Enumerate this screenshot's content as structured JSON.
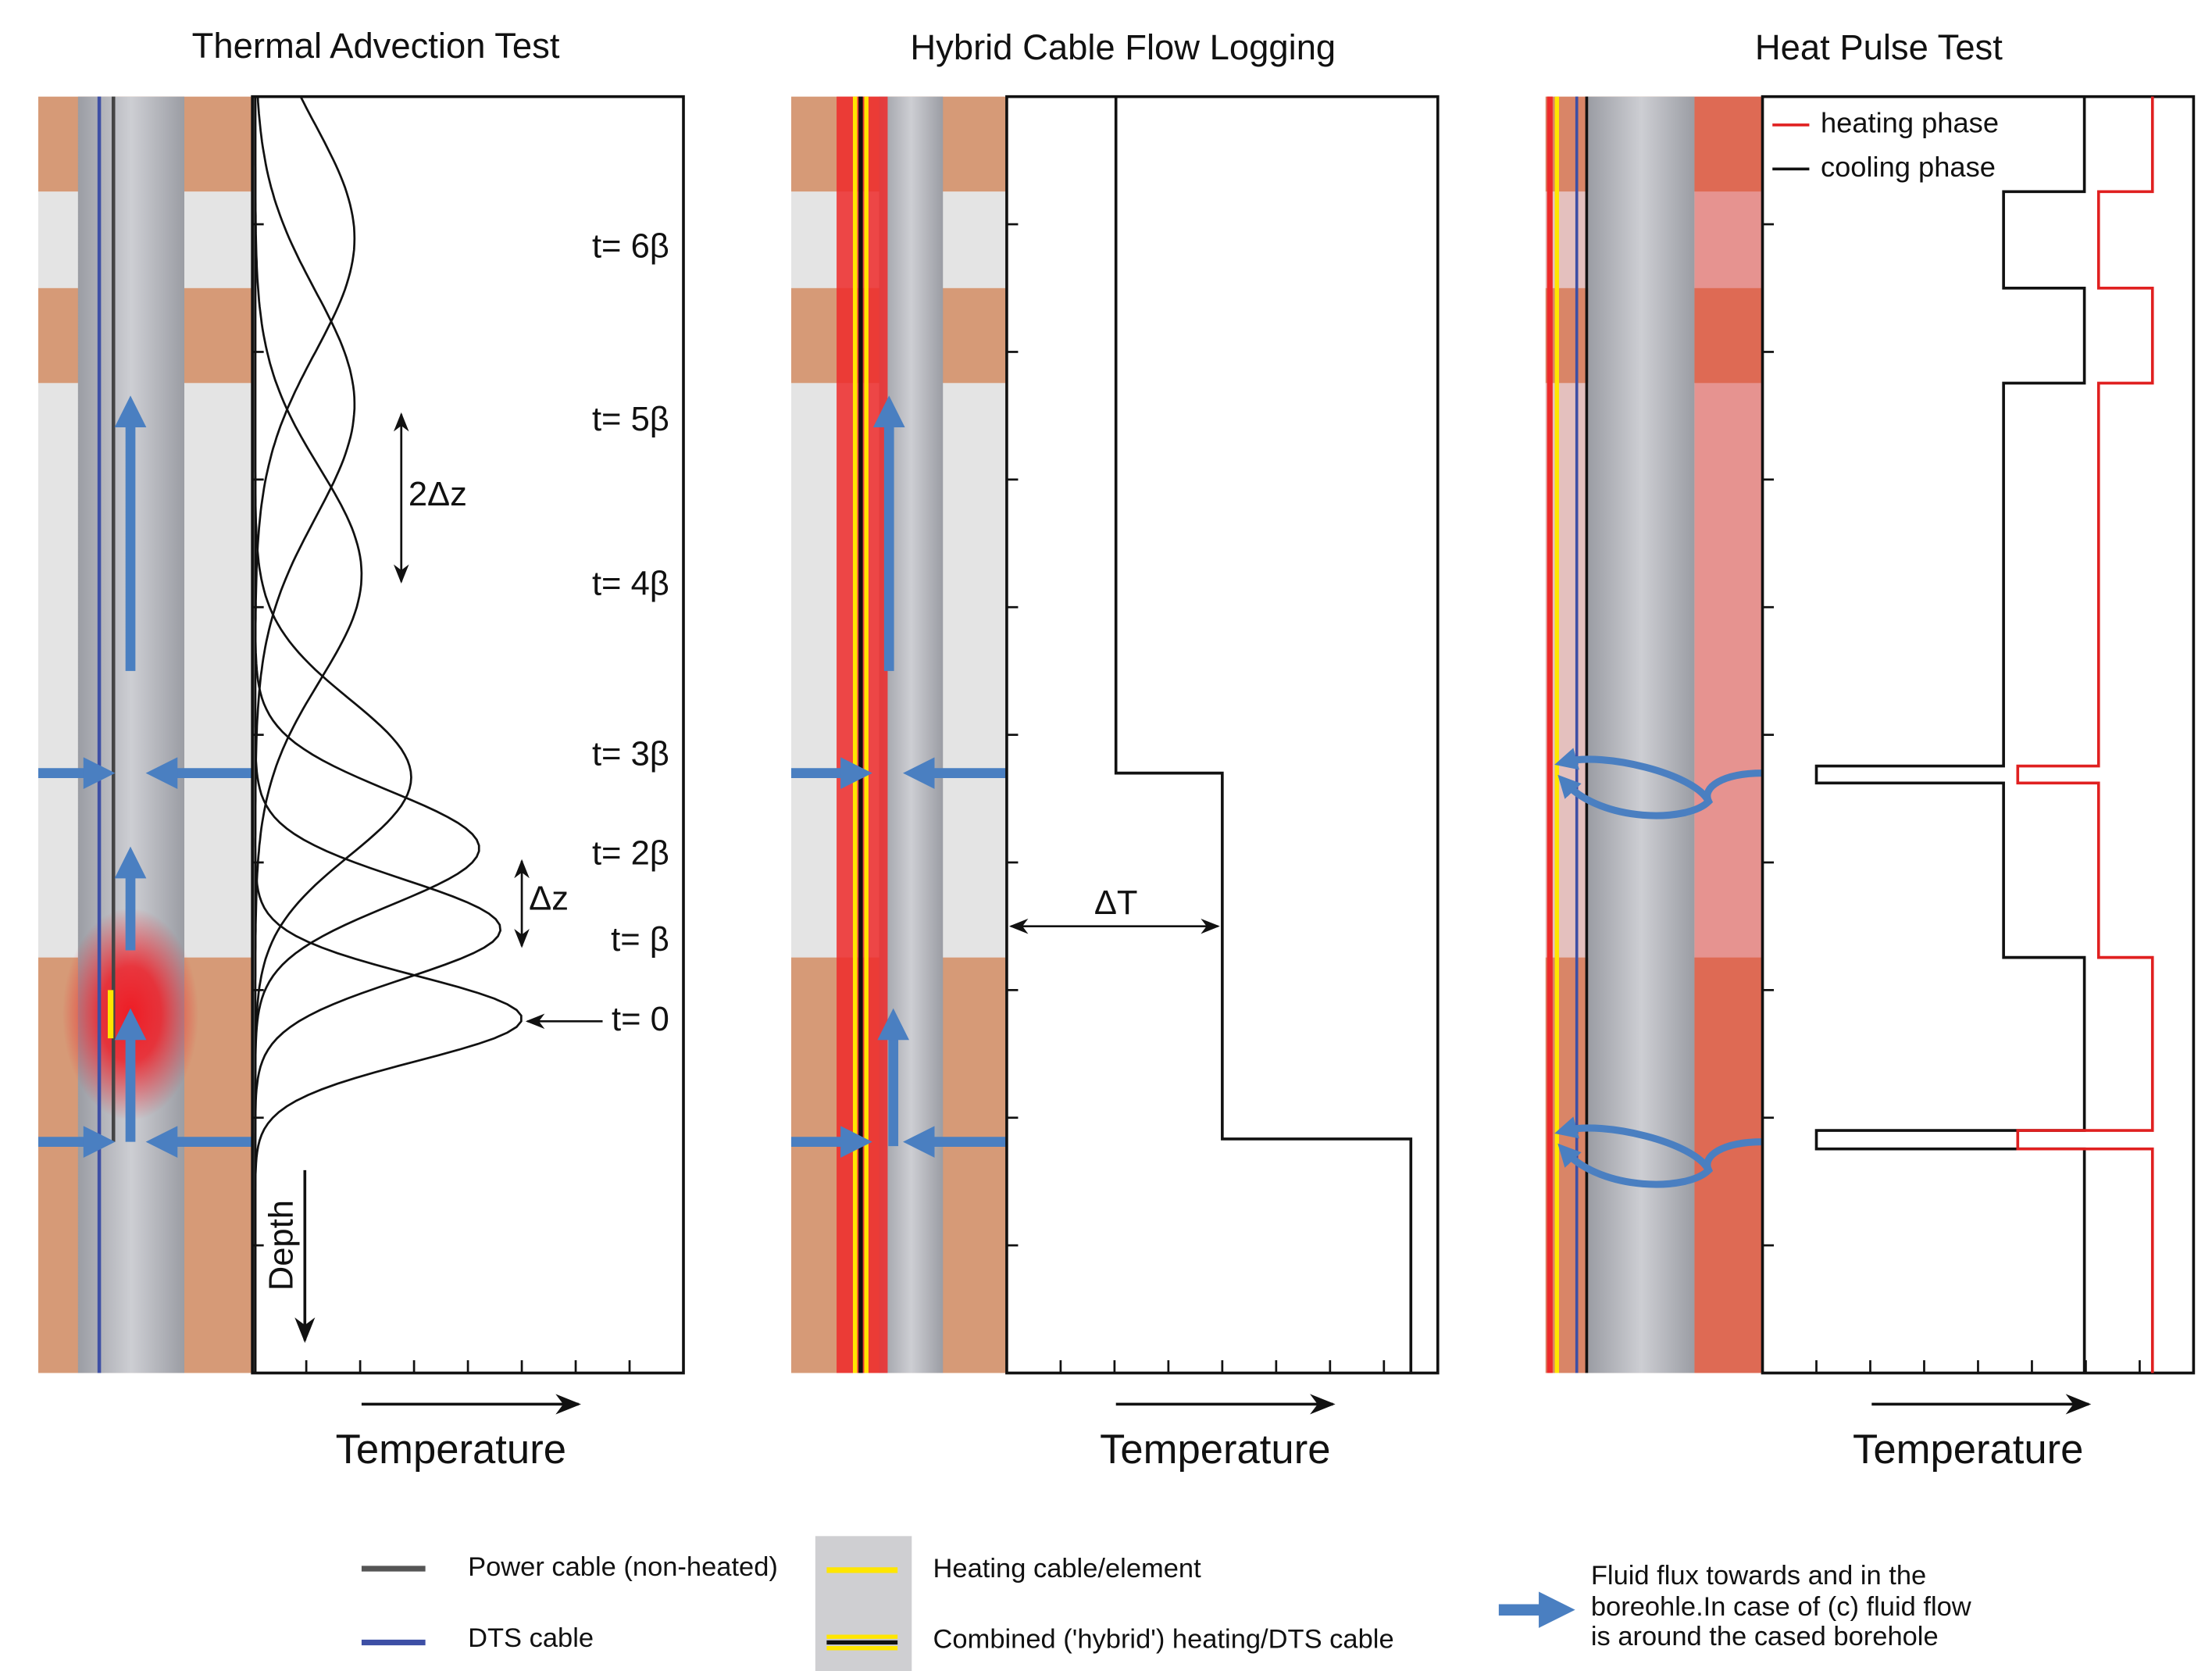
{
  "panels": [
    {
      "title": "Thermal Advection Test",
      "axis_label": "Temperature",
      "depth_label": "Depth",
      "time_labels": [
        "t= 6β",
        "t= 5β",
        "t= 4β",
        "t= 3β",
        "t= 2β",
        "t= β",
        "t= 0"
      ],
      "spacing_labels": [
        "2Δz",
        "Δz"
      ]
    },
    {
      "title": "Hybrid Cable Flow Logging",
      "axis_label": "Temperature",
      "delta_label": "ΔT"
    },
    {
      "title": "Heat Pulse Test",
      "axis_label": "Temperature",
      "legend": [
        "heating phase",
        "cooling phase"
      ]
    }
  ],
  "legend": {
    "power": "Power cable (non-heated)",
    "dts": "DTS cable",
    "heating": "Heating cable/element",
    "hybrid": "Combined ('hybrid') heating/DTS cable",
    "flux_lines": [
      "Fluid flux towards and in the",
      "boreohle.In case of (c) fluid flow",
      "is around the cased borehole"
    ]
  }
}
